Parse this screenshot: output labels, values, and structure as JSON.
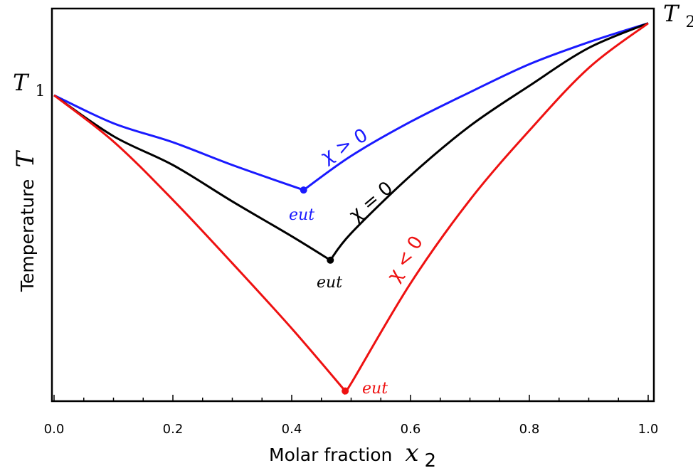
{
  "chart_data": {
    "type": "line",
    "xlabel": "Molar fraction",
    "xlabel_symbol": "x",
    "xlabel_subscript": "2",
    "ylabel": "Temperature",
    "ylabel_symbol": "T",
    "xlim": [
      0.0,
      1.0
    ],
    "ylim": [
      0.0,
      1.0
    ],
    "x_ticks": [
      "0.0",
      "0.2",
      "0.4",
      "0.6",
      "0.8",
      "1.0"
    ],
    "y_ticks_shown": false,
    "grid": false,
    "endpoint_labels": {
      "left": {
        "symbol": "T",
        "subscript": "1"
      },
      "right": {
        "symbol": "T",
        "subscript": "2"
      }
    },
    "series": [
      {
        "name": "χ > 0",
        "color": "#1a1aff",
        "eutectic": {
          "x": 0.42,
          "y": 0.54,
          "label": "eut"
        },
        "left_branch": [
          [
            0.0,
            0.79
          ],
          [
            0.1,
            0.716
          ],
          [
            0.2,
            0.666
          ],
          [
            0.3,
            0.606
          ],
          [
            0.42,
            0.54
          ]
        ],
        "right_branch": [
          [
            0.42,
            0.54
          ],
          [
            0.5,
            0.63
          ],
          [
            0.6,
            0.72
          ],
          [
            0.7,
            0.798
          ],
          [
            0.8,
            0.872
          ],
          [
            0.9,
            0.93
          ],
          [
            1.0,
            0.98
          ]
        ]
      },
      {
        "name": "χ = 0",
        "color": "#000000",
        "eutectic": {
          "x": 0.465,
          "y": 0.355,
          "label": "eut"
        },
        "left_branch": [
          [
            0.0,
            0.79
          ],
          [
            0.1,
            0.682
          ],
          [
            0.2,
            0.606
          ],
          [
            0.3,
            0.51
          ],
          [
            0.4,
            0.418
          ],
          [
            0.465,
            0.355
          ]
        ],
        "right_branch": [
          [
            0.465,
            0.355
          ],
          [
            0.5,
            0.426
          ],
          [
            0.6,
            0.578
          ],
          [
            0.7,
            0.709
          ],
          [
            0.8,
            0.815
          ],
          [
            0.9,
            0.915
          ],
          [
            1.0,
            0.98
          ]
        ]
      },
      {
        "name": "χ < 0",
        "color": "#ee1111",
        "eutectic": {
          "x": 0.49,
          "y": 0.01,
          "label": "eut"
        },
        "left_branch": [
          [
            0.0,
            0.79
          ],
          [
            0.1,
            0.668
          ],
          [
            0.2,
            0.514
          ],
          [
            0.3,
            0.347
          ],
          [
            0.4,
            0.175
          ],
          [
            0.49,
            0.01
          ]
        ],
        "right_branch": [
          [
            0.49,
            0.01
          ],
          [
            0.5,
            0.03
          ],
          [
            0.6,
            0.294
          ],
          [
            0.7,
            0.514
          ],
          [
            0.8,
            0.697
          ],
          [
            0.9,
            0.862
          ],
          [
            1.0,
            0.98
          ]
        ]
      }
    ]
  }
}
